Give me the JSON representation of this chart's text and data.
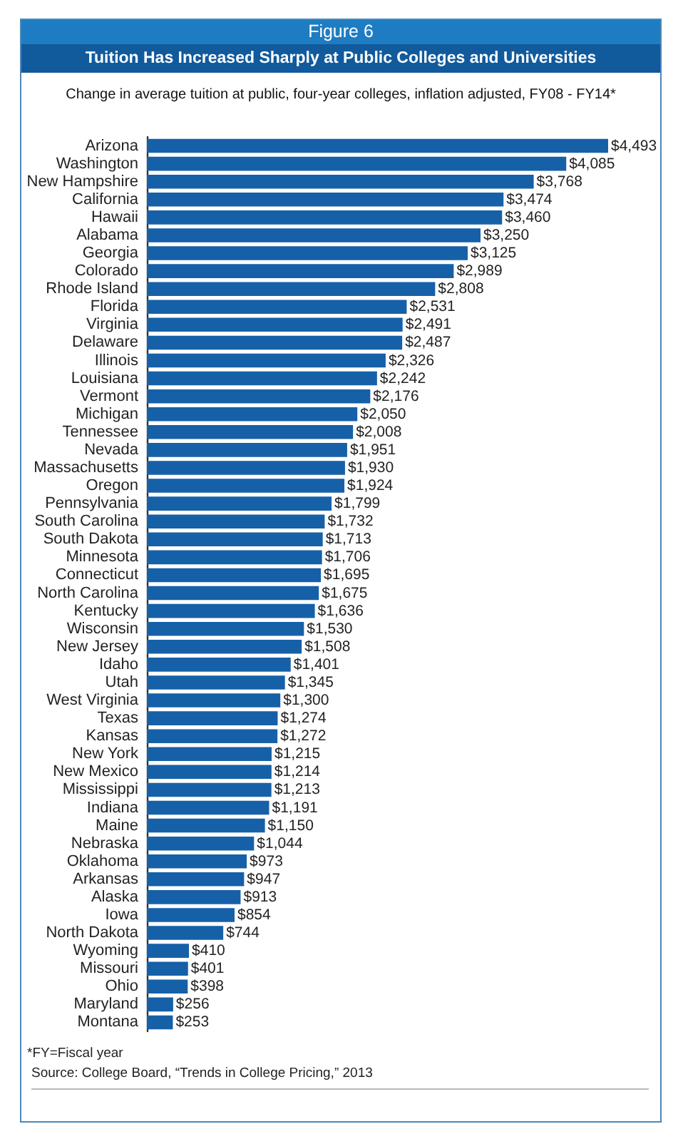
{
  "chart_data": {
    "type": "bar",
    "orientation": "horizontal",
    "title": "Tuition Has Increased Sharply at Public Colleges and Universities",
    "subtitle": "Change in average tuition at public, four-year colleges, inflation adjusted, FY08 - FY14*",
    "annotations": [
      "Figure 6",
      "*FY=Fiscal year",
      "Source: College Board, “Trends in College Pricing,” 2013"
    ],
    "categories": [
      "Arizona",
      "Washington",
      "New Hampshire",
      "California",
      "Hawaii",
      "Alabama",
      "Georgia",
      "Colorado",
      "Rhode Island",
      "Florida",
      "Virginia",
      "Delaware",
      "Illinois",
      "Louisiana",
      "Vermont",
      "Michigan",
      "Tennessee",
      "Nevada",
      "Massachusetts",
      "Oregon",
      "Pennsylvania",
      "South Carolina",
      "South Dakota",
      "Minnesota",
      "Connecticut",
      "North Carolina",
      "Kentucky",
      "Wisconsin",
      "New Jersey",
      "Idaho",
      "Utah",
      "West Virginia",
      "Texas",
      "Kansas",
      "New York",
      "New Mexico",
      "Mississippi",
      "Indiana",
      "Maine",
      "Nebraska",
      "Oklahoma",
      "Arkansas",
      "Alaska",
      "Iowa",
      "North Dakota",
      "Wyoming",
      "Missouri",
      "Ohio",
      "Maryland",
      "Montana"
    ],
    "values": [
      4493,
      4085,
      3768,
      3474,
      3460,
      3250,
      3125,
      2989,
      2808,
      2531,
      2491,
      2487,
      2326,
      2242,
      2176,
      2050,
      2008,
      1951,
      1930,
      1924,
      1799,
      1732,
      1713,
      1706,
      1695,
      1675,
      1636,
      1530,
      1508,
      1401,
      1345,
      1300,
      1274,
      1272,
      1215,
      1214,
      1213,
      1191,
      1150,
      1044,
      973,
      947,
      913,
      854,
      744,
      410,
      401,
      398,
      256,
      253
    ],
    "value_labels": [
      "$4,493",
      "$4,085",
      "$3,768",
      "$3,474",
      "$3,460",
      "$3,250",
      "$3,125",
      "$2,989",
      "$2,808",
      "$2,531",
      "$2,491",
      "$2,487",
      "$2,326",
      "$2,242",
      "$2,176",
      "$2,050",
      "$2,008",
      "$1,951",
      "$1,930",
      "$1,924",
      "$1,799",
      "$1,732",
      "$1,713",
      "$1,706",
      "$1,695",
      "$1,675",
      "$1,636",
      "$1,530",
      "$1,508",
      "$1,401",
      "$1,345",
      "$1,300",
      "$1,274",
      "$1,272",
      "$1,215",
      "$1,214",
      "$1,213",
      "$1,191",
      "$1,150",
      "$1,044",
      "$973",
      "$947",
      "$913",
      "$854",
      "$744",
      "$410",
      "$401",
      "$398",
      "$256",
      "$253"
    ],
    "color": "#1660a8"
  }
}
